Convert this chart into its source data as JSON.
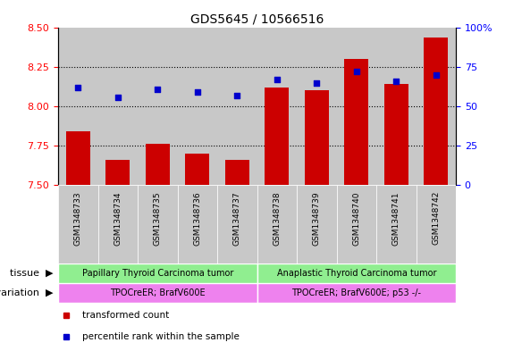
{
  "title": "GDS5645 / 10566516",
  "samples": [
    "GSM1348733",
    "GSM1348734",
    "GSM1348735",
    "GSM1348736",
    "GSM1348737",
    "GSM1348738",
    "GSM1348739",
    "GSM1348740",
    "GSM1348741",
    "GSM1348742"
  ],
  "transformed_count": [
    7.84,
    7.66,
    7.76,
    7.7,
    7.66,
    8.12,
    8.1,
    8.3,
    8.14,
    8.44
  ],
  "percentile_rank": [
    62,
    56,
    61,
    59,
    57,
    67,
    65,
    72,
    66,
    70
  ],
  "ylim_left": [
    7.5,
    8.5
  ],
  "ylim_right": [
    0,
    100
  ],
  "yticks_left": [
    7.5,
    7.75,
    8.0,
    8.25,
    8.5
  ],
  "yticks_right": [
    0,
    25,
    50,
    75,
    100
  ],
  "bar_color": "#cc0000",
  "dot_color": "#0000cc",
  "tissue_group1": "Papillary Thyroid Carcinoma tumor",
  "tissue_group2": "Anaplastic Thyroid Carcinoma tumor",
  "genotype_group1": "TPOCreER; BrafV600E",
  "genotype_group2": "TPOCreER; BrafV600E; p53 -/-",
  "tissue_color": "#90ee90",
  "genotype_color": "#ee82ee",
  "split_index": 5,
  "legend_bar_label": "transformed count",
  "legend_dot_label": "percentile rank within the sample",
  "col_bg_color": "#c8c8c8",
  "right_ytick_labels": [
    "0",
    "25",
    "50",
    "75",
    "100%"
  ]
}
